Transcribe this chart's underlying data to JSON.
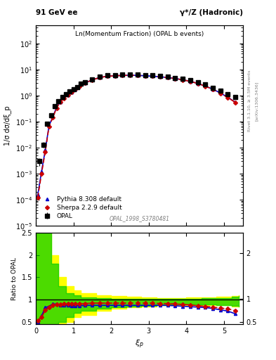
{
  "title_left": "91 GeV ee",
  "title_right": "γ*/Z (Hadronic)",
  "plot_title": "Ln(Momentum Fraction) (OPAL b events)",
  "xlabel": "ξ_p",
  "ylabel_main": "1/σ dσ/dξ_p",
  "ylabel_ratio": "Ratio to OPAL",
  "watermark": "OPAL_1998_S3780481",
  "right_label_top": "Rivet 3.1.10, ≥ 3.5M events",
  "right_label_bottom": "[arXiv:1306.3436]",
  "xi": [
    0.1,
    0.2,
    0.3,
    0.4,
    0.5,
    0.6,
    0.7,
    0.8,
    0.9,
    1.0,
    1.1,
    1.2,
    1.3,
    1.5,
    1.7,
    1.9,
    2.1,
    2.3,
    2.5,
    2.7,
    2.9,
    3.1,
    3.3,
    3.5,
    3.7,
    3.9,
    4.1,
    4.3,
    4.5,
    4.7,
    4.9,
    5.1,
    5.3
  ],
  "opal_y": [
    0.003,
    0.013,
    0.08,
    0.17,
    0.38,
    0.6,
    0.85,
    1.1,
    1.4,
    1.7,
    2.1,
    2.8,
    3.3,
    4.2,
    5.2,
    5.8,
    6.0,
    6.2,
    6.3,
    6.2,
    6.0,
    5.8,
    5.5,
    5.2,
    4.8,
    4.3,
    3.8,
    3.2,
    2.6,
    2.0,
    1.5,
    1.1,
    0.85
  ],
  "opal_err": [
    0.001,
    0.003,
    0.01,
    0.02,
    0.03,
    0.04,
    0.05,
    0.06,
    0.07,
    0.08,
    0.1,
    0.12,
    0.15,
    0.18,
    0.22,
    0.25,
    0.27,
    0.28,
    0.29,
    0.28,
    0.27,
    0.25,
    0.23,
    0.21,
    0.19,
    0.17,
    0.15,
    0.13,
    0.11,
    0.09,
    0.07,
    0.06,
    0.05
  ],
  "pythia_xi": [
    0.05,
    0.15,
    0.25,
    0.35,
    0.45,
    0.55,
    0.65,
    0.75,
    0.85,
    0.95,
    1.05,
    1.15,
    1.3,
    1.5,
    1.7,
    1.9,
    2.1,
    2.3,
    2.5,
    2.7,
    2.9,
    3.1,
    3.3,
    3.5,
    3.7,
    3.9,
    4.1,
    4.3,
    4.5,
    4.7,
    4.9,
    5.1,
    5.3
  ],
  "pythia_y": [
    0.00015,
    0.0012,
    0.008,
    0.07,
    0.15,
    0.35,
    0.58,
    0.8,
    1.05,
    1.35,
    1.75,
    2.3,
    3.0,
    4.0,
    4.9,
    5.5,
    5.7,
    5.9,
    6.0,
    5.9,
    5.7,
    5.5,
    5.2,
    4.9,
    4.5,
    4.0,
    3.5,
    2.9,
    2.3,
    1.75,
    1.25,
    0.85,
    0.55
  ],
  "sherpa_xi": [
    0.05,
    0.15,
    0.25,
    0.35,
    0.45,
    0.55,
    0.65,
    0.75,
    0.85,
    0.95,
    1.05,
    1.15,
    1.3,
    1.5,
    1.7,
    1.9,
    2.1,
    2.3,
    2.5,
    2.7,
    2.9,
    3.1,
    3.3,
    3.5,
    3.7,
    3.9,
    4.1,
    4.3,
    4.5,
    4.7,
    4.9,
    5.1,
    5.3
  ],
  "sherpa_y": [
    0.00012,
    0.001,
    0.007,
    0.065,
    0.14,
    0.33,
    0.56,
    0.78,
    1.03,
    1.33,
    1.72,
    2.28,
    2.98,
    3.98,
    4.88,
    5.48,
    5.68,
    5.88,
    5.98,
    5.88,
    5.68,
    5.48,
    5.18,
    4.88,
    4.48,
    3.98,
    3.48,
    2.88,
    2.28,
    1.72,
    1.22,
    0.83,
    0.54
  ],
  "ratio_pythia_xi": [
    0.05,
    0.15,
    0.25,
    0.35,
    0.45,
    0.55,
    0.65,
    0.75,
    0.85,
    0.95,
    1.05,
    1.15,
    1.3,
    1.5,
    1.7,
    1.9,
    2.1,
    2.3,
    2.5,
    2.7,
    2.9,
    3.1,
    3.3,
    3.5,
    3.7,
    3.9,
    4.1,
    4.3,
    4.5,
    4.7,
    4.9,
    5.1,
    5.3
  ],
  "ratio_pythia": [
    0.5,
    0.63,
    0.82,
    0.85,
    0.9,
    0.9,
    0.88,
    0.87,
    0.87,
    0.86,
    0.86,
    0.86,
    0.87,
    0.87,
    0.87,
    0.87,
    0.87,
    0.87,
    0.87,
    0.87,
    0.87,
    0.87,
    0.87,
    0.87,
    0.86,
    0.85,
    0.84,
    0.83,
    0.82,
    0.8,
    0.77,
    0.74,
    0.68
  ],
  "ratio_sherpa_xi": [
    0.05,
    0.15,
    0.25,
    0.35,
    0.45,
    0.55,
    0.65,
    0.75,
    0.85,
    0.95,
    1.05,
    1.15,
    1.3,
    1.5,
    1.7,
    1.9,
    2.1,
    2.3,
    2.5,
    2.7,
    2.9,
    3.1,
    3.3,
    3.5,
    3.7,
    3.9,
    4.1,
    4.3,
    4.5,
    4.7,
    4.9,
    5.1,
    5.3
  ],
  "ratio_sherpa": [
    0.52,
    0.6,
    0.76,
    0.82,
    0.88,
    0.89,
    0.89,
    0.9,
    0.9,
    0.9,
    0.9,
    0.9,
    0.91,
    0.92,
    0.92,
    0.92,
    0.92,
    0.92,
    0.92,
    0.92,
    0.92,
    0.92,
    0.91,
    0.91,
    0.9,
    0.89,
    0.88,
    0.86,
    0.85,
    0.83,
    0.81,
    0.79,
    0.75
  ],
  "band_yellow_x": [
    0.0,
    0.2,
    0.4,
    0.6,
    0.8,
    1.0,
    1.2,
    1.6,
    2.0,
    2.4,
    2.8,
    3.2,
    3.6,
    4.0,
    4.4,
    4.8,
    5.2,
    5.4
  ],
  "band_yellow_lo": [
    0.3,
    0.3,
    0.3,
    0.4,
    0.5,
    0.6,
    0.65,
    0.75,
    0.8,
    0.83,
    0.85,
    0.87,
    0.88,
    0.88,
    0.88,
    0.87,
    0.85,
    0.84
  ],
  "band_yellow_hi": [
    2.5,
    2.5,
    2.0,
    1.5,
    1.3,
    1.2,
    1.15,
    1.1,
    1.08,
    1.06,
    1.05,
    1.04,
    1.04,
    1.05,
    1.05,
    1.06,
    1.08,
    1.1
  ],
  "band_green_x": [
    0.0,
    0.2,
    0.4,
    0.6,
    0.8,
    1.0,
    1.2,
    1.6,
    2.0,
    2.4,
    2.8,
    3.2,
    3.6,
    4.0,
    4.4,
    4.8,
    5.2,
    5.4
  ],
  "band_green_lo": [
    0.3,
    0.3,
    0.4,
    0.5,
    0.6,
    0.7,
    0.75,
    0.8,
    0.83,
    0.85,
    0.86,
    0.88,
    0.89,
    0.89,
    0.89,
    0.88,
    0.86,
    0.85
  ],
  "band_green_hi": [
    2.5,
    2.5,
    1.8,
    1.3,
    1.15,
    1.1,
    1.05,
    1.03,
    1.02,
    1.01,
    1.01,
    1.01,
    1.02,
    1.02,
    1.03,
    1.04,
    1.06,
    1.08
  ],
  "opal_color": "black",
  "pythia_color": "#0000cc",
  "sherpa_color": "#cc0000",
  "yellow_color": "#ffff00",
  "green_color": "#00cc00",
  "bg_color": "white"
}
